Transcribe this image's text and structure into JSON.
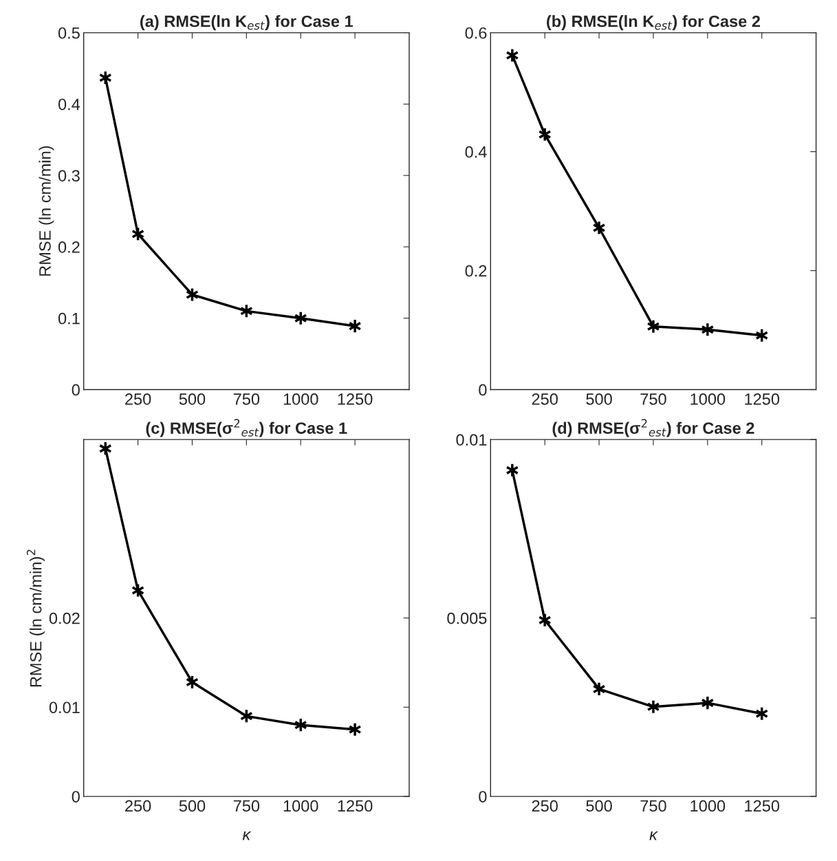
{
  "chart_data": [
    {
      "type": "line",
      "title": "(a) RMSE(ln K$_{est}$) for Case 1",
      "ylabel": "RMSE (ln cm/min)",
      "x": [
        100,
        250,
        500,
        750,
        1000,
        1250
      ],
      "series": [
        {
          "color": "#000000",
          "values": [
            0.437,
            0.218,
            0.133,
            0.11,
            0.1,
            0.089
          ]
        }
      ],
      "xlim": [
        0,
        1500
      ],
      "xticks": [
        250,
        500,
        750,
        1000,
        1250
      ],
      "ylim": [
        0,
        0.5
      ],
      "yticks": [
        0,
        0.1,
        0.2,
        0.3,
        0.4,
        0.5
      ],
      "marker": "cross",
      "line_style": "solid"
    },
    {
      "type": "line",
      "title": "(b) RMSE(ln K$_{est}$) for Case 2",
      "x": [
        100,
        250,
        500,
        750,
        1000,
        1250
      ],
      "series": [
        {
          "color": "#000000",
          "values": [
            0.562,
            0.429,
            0.272,
            0.106,
            0.101,
            0.091
          ]
        }
      ],
      "xlim": [
        0,
        1500
      ],
      "xticks": [
        250,
        500,
        750,
        1000,
        1250
      ],
      "ylim": [
        0,
        0.6
      ],
      "yticks": [
        0,
        0.2,
        0.4,
        0.6
      ],
      "marker": "cross",
      "line_style": "solid"
    },
    {
      "type": "line",
      "title": "(c) RMSE(σ$^{2}$$_{est}$) for Case 1",
      "xlabel": "κ",
      "ylabel": "RMSE (ln cm/min)$^{2}$",
      "x": [
        100,
        250,
        500,
        750,
        1000,
        1250
      ],
      "series": [
        {
          "color": "#000000",
          "values": [
            0.039,
            0.0231,
            0.0128,
            0.009,
            0.008,
            0.0075
          ]
        }
      ],
      "xlim": [
        0,
        1500
      ],
      "xticks": [
        250,
        500,
        750,
        1000,
        1250
      ],
      "ylim": [
        0,
        0.04
      ],
      "yticks": [
        0,
        0.01,
        0.02
      ],
      "marker": "cross",
      "line_style": "solid"
    },
    {
      "type": "line",
      "title": "(d) RMSE(σ$^{2}$$_{est}$) for Case 2",
      "xlabel": "κ",
      "x": [
        100,
        250,
        500,
        750,
        1000,
        1250
      ],
      "series": [
        {
          "color": "#000000",
          "values": [
            0.00914,
            0.00494,
            0.00301,
            0.00251,
            0.00262,
            0.00232
          ]
        }
      ],
      "xlim": [
        0,
        1500
      ],
      "xticks": [
        250,
        500,
        750,
        1000,
        1250
      ],
      "ylim": [
        0,
        0.01
      ],
      "yticks": [
        0,
        0.005,
        0.01
      ],
      "marker": "cross",
      "line_style": "solid"
    }
  ]
}
